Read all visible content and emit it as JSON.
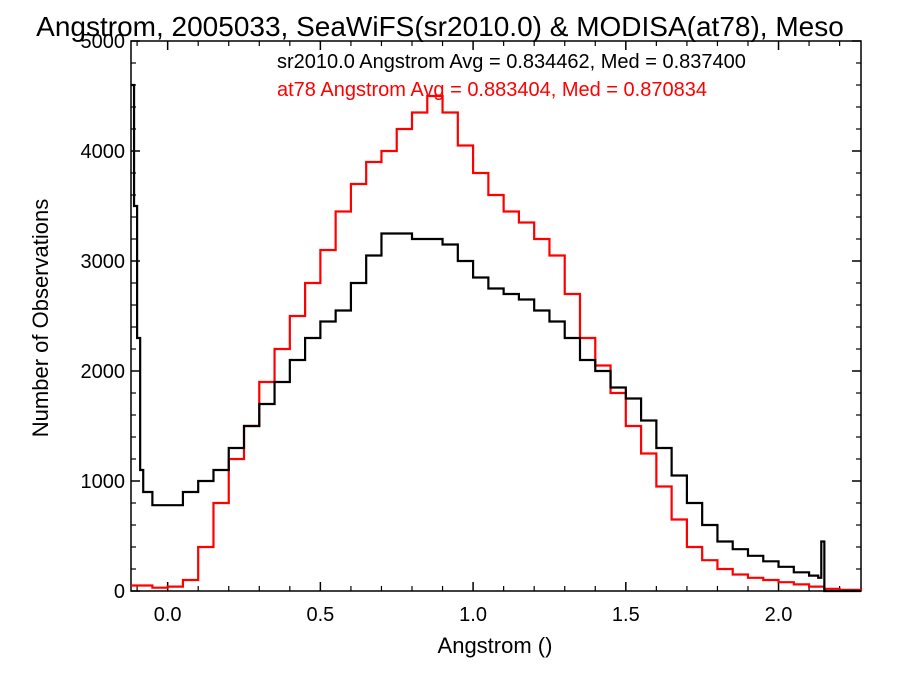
{
  "chart_data": {
    "type": "line",
    "title": "Angstrom, 2005033, SeaWiFS(sr2010.0) & MODISA(at78), Meso",
    "xlabel": "Angstrom ()",
    "ylabel": "Number of Observations",
    "xlim": [
      -0.12,
      2.27
    ],
    "ylim": [
      0,
      5000
    ],
    "x_ticks": [
      0.0,
      0.5,
      1.0,
      1.5,
      2.0
    ],
    "x_tick_labels": [
      "0.0",
      "0.5",
      "1.0",
      "1.5",
      "2.0"
    ],
    "y_ticks": [
      0,
      1000,
      2000,
      3000,
      4000,
      5000
    ],
    "y_tick_labels": [
      "0",
      "1000",
      "2000",
      "3000",
      "4000",
      "5000"
    ],
    "grid": false,
    "step": true,
    "annotations": [
      {
        "text": "sr2010.0 Angstrom Avg = 0.834462, Med = 0.837400",
        "color": "#000000"
      },
      {
        "text": "at78 Angstrom Avg = 0.883404, Med = 0.870834",
        "color": "#ff0000"
      }
    ],
    "series": [
      {
        "color": "#000000",
        "points": [
          [
            -0.12,
            4600
          ],
          [
            -0.11,
            3500
          ],
          [
            -0.1,
            2300
          ],
          [
            -0.09,
            1100
          ],
          [
            -0.08,
            900
          ],
          [
            -0.05,
            780
          ],
          [
            0.0,
            780
          ],
          [
            0.05,
            900
          ],
          [
            0.1,
            1000
          ],
          [
            0.15,
            1100
          ],
          [
            0.2,
            1300
          ],
          [
            0.25,
            1500
          ],
          [
            0.3,
            1700
          ],
          [
            0.35,
            1900
          ],
          [
            0.4,
            2100
          ],
          [
            0.45,
            2300
          ],
          [
            0.5,
            2450
          ],
          [
            0.55,
            2550
          ],
          [
            0.6,
            2800
          ],
          [
            0.65,
            3050
          ],
          [
            0.7,
            3250
          ],
          [
            0.75,
            3250
          ],
          [
            0.8,
            3200
          ],
          [
            0.85,
            3200
          ],
          [
            0.9,
            3150
          ],
          [
            0.95,
            3000
          ],
          [
            1.0,
            2850
          ],
          [
            1.05,
            2750
          ],
          [
            1.1,
            2700
          ],
          [
            1.15,
            2650
          ],
          [
            1.2,
            2550
          ],
          [
            1.25,
            2450
          ],
          [
            1.3,
            2300
          ],
          [
            1.35,
            2100
          ],
          [
            1.4,
            2000
          ],
          [
            1.45,
            1850
          ],
          [
            1.5,
            1750
          ],
          [
            1.55,
            1550
          ],
          [
            1.6,
            1300
          ],
          [
            1.65,
            1050
          ],
          [
            1.7,
            800
          ],
          [
            1.75,
            600
          ],
          [
            1.8,
            450
          ],
          [
            1.85,
            380
          ],
          [
            1.9,
            320
          ],
          [
            1.95,
            270
          ],
          [
            2.0,
            220
          ],
          [
            2.05,
            170
          ],
          [
            2.1,
            140
          ],
          [
            2.13,
            120
          ],
          [
            2.14,
            450
          ],
          [
            2.15,
            0
          ],
          [
            2.27,
            0
          ]
        ]
      },
      {
        "color": "#ff0000",
        "points": [
          [
            -0.12,
            50
          ],
          [
            -0.05,
            30
          ],
          [
            0.0,
            40
          ],
          [
            0.05,
            100
          ],
          [
            0.1,
            400
          ],
          [
            0.15,
            800
          ],
          [
            0.2,
            1200
          ],
          [
            0.25,
            1500
          ],
          [
            0.3,
            1900
          ],
          [
            0.35,
            2200
          ],
          [
            0.4,
            2500
          ],
          [
            0.45,
            2800
          ],
          [
            0.5,
            3100
          ],
          [
            0.55,
            3450
          ],
          [
            0.6,
            3700
          ],
          [
            0.65,
            3900
          ],
          [
            0.7,
            4000
          ],
          [
            0.75,
            4200
          ],
          [
            0.8,
            4350
          ],
          [
            0.85,
            4500
          ],
          [
            0.9,
            4350
          ],
          [
            0.95,
            4050
          ],
          [
            1.0,
            3800
          ],
          [
            1.05,
            3600
          ],
          [
            1.1,
            3450
          ],
          [
            1.15,
            3350
          ],
          [
            1.2,
            3200
          ],
          [
            1.25,
            3050
          ],
          [
            1.3,
            2700
          ],
          [
            1.35,
            2300
          ],
          [
            1.4,
            2050
          ],
          [
            1.45,
            1800
          ],
          [
            1.5,
            1500
          ],
          [
            1.55,
            1250
          ],
          [
            1.6,
            950
          ],
          [
            1.65,
            650
          ],
          [
            1.7,
            400
          ],
          [
            1.75,
            280
          ],
          [
            1.8,
            200
          ],
          [
            1.85,
            150
          ],
          [
            1.9,
            120
          ],
          [
            1.95,
            100
          ],
          [
            2.0,
            80
          ],
          [
            2.05,
            60
          ],
          [
            2.1,
            40
          ],
          [
            2.15,
            20
          ],
          [
            2.2,
            10
          ],
          [
            2.27,
            5
          ]
        ]
      }
    ]
  }
}
